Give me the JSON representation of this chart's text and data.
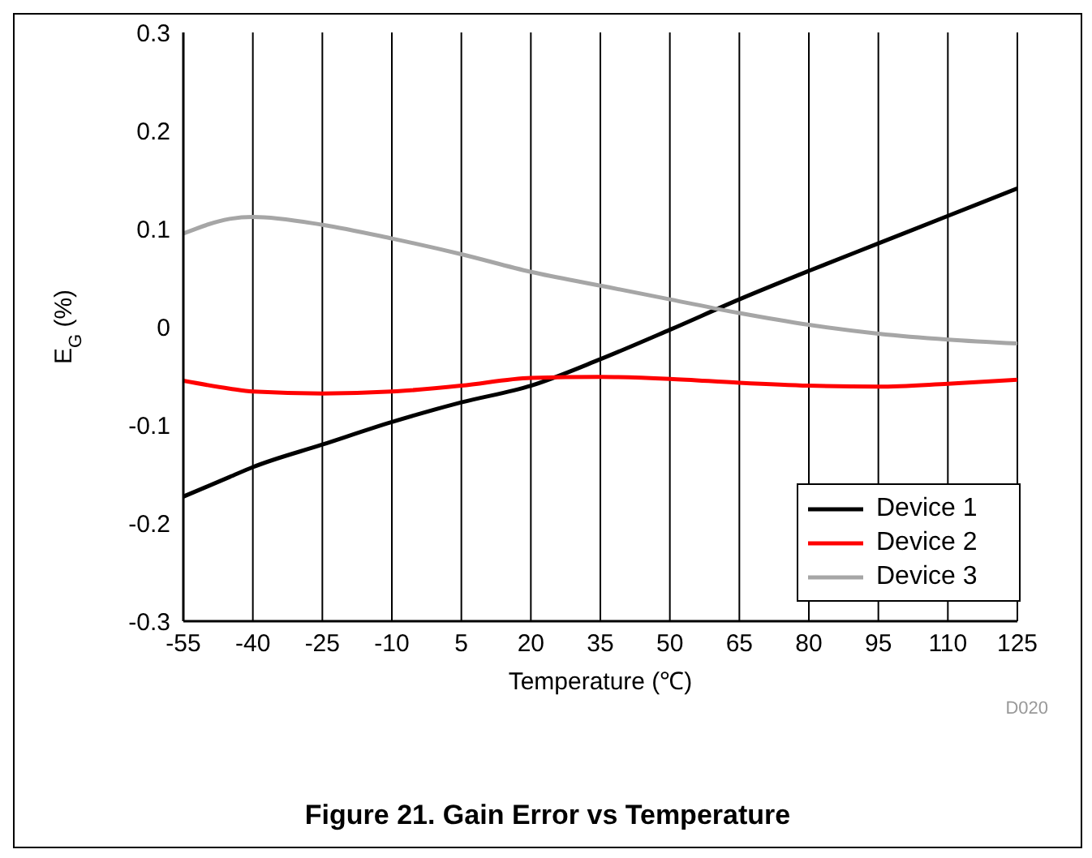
{
  "chart_data": {
    "type": "line",
    "title": "Figure 21. Gain Error vs Temperature",
    "xlabel": "Temperature (℃)",
    "ylabel": "E$_{G}$ (%)",
    "x": [
      -55,
      -45,
      -40,
      -25,
      -10,
      5,
      20,
      35,
      50,
      65,
      80,
      95,
      110,
      125
    ],
    "series": [
      {
        "name": "Device 1",
        "color": "#000000",
        "values": [
          -0.173,
          -0.153,
          -0.143,
          -0.12,
          -0.097,
          -0.077,
          -0.06,
          -0.033,
          -0.003,
          0.028,
          0.057,
          0.085,
          0.113,
          0.141
        ]
      },
      {
        "name": "Device 2",
        "color": "#ff0000",
        "values": [
          -0.055,
          -0.063,
          -0.066,
          -0.068,
          -0.066,
          -0.06,
          -0.052,
          -0.051,
          -0.053,
          -0.057,
          -0.06,
          -0.061,
          -0.058,
          -0.054
        ]
      },
      {
        "name": "Device 3",
        "color": "#a6a6a6",
        "values": [
          0.095,
          0.11,
          0.112,
          0.104,
          0.09,
          0.074,
          0.056,
          0.042,
          0.028,
          0.014,
          0.002,
          -0.007,
          -0.013,
          -0.017
        ]
      }
    ],
    "xlim": [
      -55,
      125
    ],
    "xticks": [
      -55,
      -40,
      -25,
      -10,
      5,
      20,
      35,
      50,
      65,
      80,
      95,
      110,
      125
    ],
    "ylim": [
      -0.3,
      0.3
    ],
    "yticks": [
      -0.3,
      -0.2,
      -0.1,
      0,
      0.1,
      0.2,
      0.3
    ],
    "grid": "x",
    "legend": "bottom right",
    "marker": "none",
    "line_style": "solid",
    "annotations": [
      "D020"
    ]
  }
}
